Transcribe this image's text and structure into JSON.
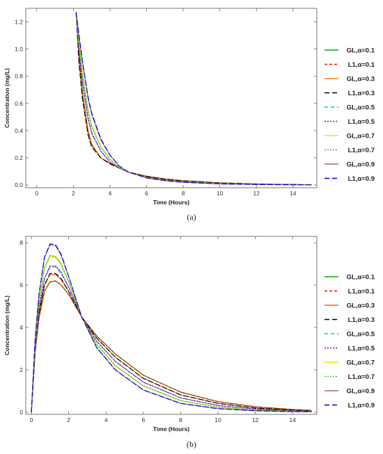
{
  "chart_data": [
    {
      "type": "line",
      "caption": "(a)",
      "xlabel": "Time (Hours)",
      "ylabel": "Concentration (mg/L)",
      "xlim": [
        -0.6,
        15.3
      ],
      "ylim": [
        -0.02,
        1.3
      ],
      "xticks": [
        0,
        2,
        4,
        6,
        8,
        10,
        12,
        14
      ],
      "yticks": [
        0.0,
        0.2,
        0.4,
        0.6,
        0.8,
        1.0,
        1.2
      ],
      "ytick_labels": [
        "0.0",
        "0.2",
        "0.4",
        "0.6",
        "0.8",
        "1.0",
        "1.2"
      ],
      "grid": false,
      "legend": "right",
      "series": [
        {
          "name": "GL,α=0.1",
          "color": "#00aa00",
          "dash": "solid",
          "x": [
            2.15,
            2.3,
            2.5,
            2.8,
            3.0,
            3.5,
            4.0,
            4.5,
            5.0,
            6.0,
            7.0,
            8.0,
            10.0,
            12.0,
            14.0,
            15.0
          ],
          "y": [
            1.27,
            0.95,
            0.68,
            0.4,
            0.3,
            0.2,
            0.16,
            0.125,
            0.095,
            0.065,
            0.045,
            0.032,
            0.016,
            0.008,
            0.004,
            0.002
          ]
        },
        {
          "name": "L1,α=0.1",
          "color": "#ff0000",
          "dash": "4,3",
          "x": [
            2.15,
            2.3,
            2.5,
            2.8,
            3.0,
            3.5,
            4.0,
            4.5,
            5.0,
            6.0,
            7.0,
            8.0,
            10.0,
            12.0,
            14.0,
            15.0
          ],
          "y": [
            1.27,
            0.94,
            0.67,
            0.4,
            0.3,
            0.2,
            0.16,
            0.125,
            0.095,
            0.065,
            0.045,
            0.032,
            0.016,
            0.008,
            0.004,
            0.002
          ]
        },
        {
          "name": "GL,α=0.3",
          "color": "#ff8800",
          "dash": "solid",
          "x": [
            2.15,
            2.3,
            2.5,
            2.8,
            3.0,
            3.5,
            4.0,
            4.5,
            5.0,
            6.0,
            7.0,
            8.0,
            10.0,
            12.0,
            14.0,
            15.0
          ],
          "y": [
            1.27,
            0.92,
            0.64,
            0.38,
            0.29,
            0.2,
            0.155,
            0.125,
            0.095,
            0.062,
            0.043,
            0.03,
            0.015,
            0.007,
            0.003,
            0.002
          ]
        },
        {
          "name": "L1,α=0.3",
          "color": "#000000",
          "dash": "7,4",
          "x": [
            2.15,
            2.3,
            2.5,
            2.8,
            3.0,
            3.5,
            4.0,
            4.5,
            5.0,
            6.0,
            7.0,
            8.0,
            10.0,
            12.0,
            14.0,
            15.0
          ],
          "y": [
            1.27,
            0.91,
            0.63,
            0.37,
            0.28,
            0.2,
            0.155,
            0.125,
            0.095,
            0.062,
            0.043,
            0.03,
            0.015,
            0.007,
            0.003,
            0.002
          ]
        },
        {
          "name": "GL,α=0.5",
          "color": "#00cccc",
          "dash": "5,4",
          "x": [
            2.15,
            2.3,
            2.5,
            2.8,
            3.0,
            3.5,
            4.0,
            4.5,
            5.0,
            6.0,
            7.0,
            8.0,
            10.0,
            12.0,
            14.0,
            15.0
          ],
          "y": [
            1.27,
            1.0,
            0.76,
            0.5,
            0.39,
            0.25,
            0.17,
            0.125,
            0.095,
            0.058,
            0.038,
            0.026,
            0.012,
            0.006,
            0.003,
            0.002
          ]
        },
        {
          "name": "L1,α=0.5",
          "color": "#8800aa",
          "dash": "2,2",
          "x": [
            2.15,
            2.3,
            2.5,
            2.8,
            3.0,
            3.5,
            4.0,
            4.5,
            5.0,
            6.0,
            7.0,
            8.0,
            10.0,
            12.0,
            14.0,
            15.0
          ],
          "y": [
            1.27,
            0.99,
            0.75,
            0.49,
            0.38,
            0.25,
            0.17,
            0.125,
            0.095,
            0.058,
            0.038,
            0.026,
            0.012,
            0.006,
            0.003,
            0.002
          ]
        },
        {
          "name": "GL,α=0.7",
          "color": "#ffdd00",
          "dash": "solid",
          "x": [
            2.15,
            2.3,
            2.5,
            2.8,
            3.0,
            3.5,
            4.0,
            4.5,
            5.0,
            6.0,
            7.0,
            8.0,
            10.0,
            12.0,
            14.0,
            15.0
          ],
          "y": [
            1.27,
            1.05,
            0.82,
            0.56,
            0.44,
            0.28,
            0.19,
            0.13,
            0.095,
            0.055,
            0.035,
            0.023,
            0.01,
            0.005,
            0.002,
            0.001
          ]
        },
        {
          "name": "L1,α=0.7",
          "color": "#22cc22",
          "dash": "2,2",
          "x": [
            2.15,
            2.3,
            2.5,
            2.8,
            3.0,
            3.5,
            4.0,
            4.5,
            5.0,
            6.0,
            7.0,
            8.0,
            10.0,
            12.0,
            14.0,
            15.0
          ],
          "y": [
            1.27,
            1.04,
            0.81,
            0.55,
            0.43,
            0.28,
            0.19,
            0.13,
            0.095,
            0.055,
            0.035,
            0.023,
            0.01,
            0.005,
            0.002,
            0.001
          ]
        },
        {
          "name": "GL,α=0.9",
          "color": "#aa6677",
          "dash": "solid",
          "x": [
            2.15,
            2.3,
            2.5,
            2.8,
            3.0,
            3.5,
            4.0,
            4.5,
            5.0,
            6.0,
            7.0,
            8.0,
            10.0,
            12.0,
            14.0,
            15.0
          ],
          "y": [
            1.27,
            1.1,
            0.9,
            0.64,
            0.52,
            0.33,
            0.22,
            0.14,
            0.095,
            0.052,
            0.032,
            0.02,
            0.008,
            0.004,
            0.002,
            0.001
          ]
        },
        {
          "name": "L1,α=0.9",
          "color": "#0000dd",
          "dash": "7,4",
          "x": [
            2.15,
            2.3,
            2.5,
            2.8,
            3.0,
            3.5,
            4.0,
            4.5,
            5.0,
            6.0,
            7.0,
            8.0,
            10.0,
            12.0,
            14.0,
            15.0
          ],
          "y": [
            1.27,
            1.11,
            0.91,
            0.65,
            0.53,
            0.34,
            0.22,
            0.14,
            0.095,
            0.052,
            0.032,
            0.02,
            0.008,
            0.004,
            0.002,
            0.001
          ]
        }
      ]
    },
    {
      "type": "line",
      "caption": "(b)",
      "xlabel": "Time (Hours)",
      "ylabel": "Concentration (mg/L)",
      "xlim": [
        -0.3,
        15.3
      ],
      "ylim": [
        -0.1,
        8.3
      ],
      "xticks": [
        0,
        2,
        4,
        6,
        8,
        10,
        12,
        14
      ],
      "yticks": [
        0,
        2,
        4,
        6,
        8
      ],
      "ytick_labels": [
        "0",
        "2",
        "4",
        "6",
        "8"
      ],
      "grid": false,
      "legend": "right",
      "series": [
        {
          "name": "GL,α=0.1",
          "color": "#00aa00",
          "dash": "solid",
          "x": [
            0,
            0.2,
            0.4,
            0.7,
            1.0,
            1.3,
            1.6,
            2.0,
            2.7,
            3.5,
            4.5,
            6.0,
            8.0,
            10.0,
            12.0,
            14.0,
            15.0
          ],
          "y": [
            0,
            2.8,
            4.4,
            5.7,
            6.15,
            6.2,
            6.0,
            5.55,
            4.5,
            3.6,
            2.75,
            1.75,
            0.95,
            0.5,
            0.26,
            0.13,
            0.09
          ]
        },
        {
          "name": "L1,α=0.1",
          "color": "#ff0000",
          "dash": "4,3",
          "x": [
            0,
            0.2,
            0.4,
            0.7,
            1.0,
            1.3,
            1.6,
            2.0,
            2.7,
            3.5,
            4.5,
            6.0,
            8.0,
            10.0,
            12.0,
            14.0,
            15.0
          ],
          "y": [
            0,
            2.8,
            4.4,
            5.7,
            6.15,
            6.2,
            6.0,
            5.55,
            4.5,
            3.6,
            2.75,
            1.75,
            0.95,
            0.5,
            0.26,
            0.13,
            0.09
          ]
        },
        {
          "name": "GL,α=0.3",
          "color": "#ff6600",
          "dash": "solid",
          "x": [
            0,
            0.2,
            0.4,
            0.7,
            1.0,
            1.3,
            1.6,
            2.0,
            2.7,
            3.5,
            4.5,
            6.0,
            8.0,
            10.0,
            12.0,
            14.0,
            15.0
          ],
          "y": [
            0,
            2.9,
            4.6,
            6.0,
            6.5,
            6.5,
            6.25,
            5.7,
            4.5,
            3.5,
            2.6,
            1.6,
            0.82,
            0.42,
            0.2,
            0.1,
            0.07
          ]
        },
        {
          "name": "L1,α=0.3",
          "color": "#000000",
          "dash": "7,4",
          "x": [
            0,
            0.2,
            0.4,
            0.7,
            1.0,
            1.3,
            1.6,
            2.0,
            2.7,
            3.5,
            4.5,
            6.0,
            8.0,
            10.0,
            12.0,
            14.0,
            15.0
          ],
          "y": [
            0,
            2.9,
            4.6,
            6.0,
            6.55,
            6.55,
            6.3,
            5.7,
            4.5,
            3.5,
            2.6,
            1.6,
            0.82,
            0.42,
            0.2,
            0.1,
            0.07
          ]
        },
        {
          "name": "GL,α=0.5",
          "color": "#00cccc",
          "dash": "5,4",
          "x": [
            0,
            0.2,
            0.4,
            0.7,
            1.0,
            1.3,
            1.6,
            2.0,
            2.7,
            3.5,
            4.5,
            6.0,
            8.0,
            10.0,
            12.0,
            14.0,
            15.0
          ],
          "y": [
            0,
            3.0,
            4.8,
            6.3,
            6.85,
            6.85,
            6.55,
            5.9,
            4.5,
            3.35,
            2.4,
            1.42,
            0.68,
            0.32,
            0.15,
            0.07,
            0.05
          ]
        },
        {
          "name": "L1,α=0.5",
          "color": "#8800aa",
          "dash": "2,2",
          "x": [
            0,
            0.2,
            0.4,
            0.7,
            1.0,
            1.3,
            1.6,
            2.0,
            2.7,
            3.5,
            4.5,
            6.0,
            8.0,
            10.0,
            12.0,
            14.0,
            15.0
          ],
          "y": [
            0,
            3.0,
            4.8,
            6.3,
            6.9,
            6.9,
            6.6,
            5.9,
            4.5,
            3.35,
            2.4,
            1.42,
            0.68,
            0.32,
            0.15,
            0.07,
            0.05
          ]
        },
        {
          "name": "GL,α=0.7",
          "color": "#ffdd00",
          "dash": "solid",
          "x": [
            0,
            0.2,
            0.4,
            0.7,
            1.0,
            1.3,
            1.6,
            2.0,
            2.7,
            3.5,
            4.5,
            6.0,
            8.0,
            10.0,
            12.0,
            14.0,
            15.0
          ],
          "y": [
            0,
            3.2,
            5.1,
            6.8,
            7.35,
            7.3,
            6.95,
            6.15,
            4.5,
            3.2,
            2.2,
            1.25,
            0.55,
            0.24,
            0.1,
            0.05,
            0.03
          ]
        },
        {
          "name": "L1,α=0.7",
          "color": "#22cc22",
          "dash": "2,2",
          "x": [
            0,
            0.2,
            0.4,
            0.7,
            1.0,
            1.3,
            1.6,
            2.0,
            2.7,
            3.5,
            4.5,
            6.0,
            8.0,
            10.0,
            12.0,
            14.0,
            15.0
          ],
          "y": [
            0,
            3.2,
            5.1,
            6.8,
            7.4,
            7.35,
            7.0,
            6.15,
            4.5,
            3.2,
            2.2,
            1.25,
            0.55,
            0.24,
            0.1,
            0.05,
            0.03
          ]
        },
        {
          "name": "GL,α=0.9",
          "color": "#aa6677",
          "dash": "solid",
          "x": [
            0,
            0.2,
            0.4,
            0.7,
            1.0,
            1.3,
            1.6,
            2.0,
            2.7,
            3.5,
            4.5,
            6.0,
            8.0,
            10.0,
            12.0,
            14.0,
            15.0
          ],
          "y": [
            0,
            3.4,
            5.5,
            7.3,
            7.9,
            7.85,
            7.4,
            6.4,
            4.5,
            3.05,
            2.0,
            1.05,
            0.42,
            0.17,
            0.07,
            0.03,
            0.02
          ]
        },
        {
          "name": "L1,α=0.9",
          "color": "#0000dd",
          "dash": "7,4",
          "x": [
            0,
            0.2,
            0.4,
            0.7,
            1.0,
            1.3,
            1.6,
            2.0,
            2.7,
            3.5,
            4.5,
            6.0,
            8.0,
            10.0,
            12.0,
            14.0,
            15.0
          ],
          "y": [
            0,
            3.4,
            5.5,
            7.3,
            7.95,
            7.9,
            7.45,
            6.4,
            4.5,
            3.05,
            2.0,
            1.05,
            0.42,
            0.17,
            0.07,
            0.03,
            0.02
          ]
        }
      ]
    }
  ]
}
